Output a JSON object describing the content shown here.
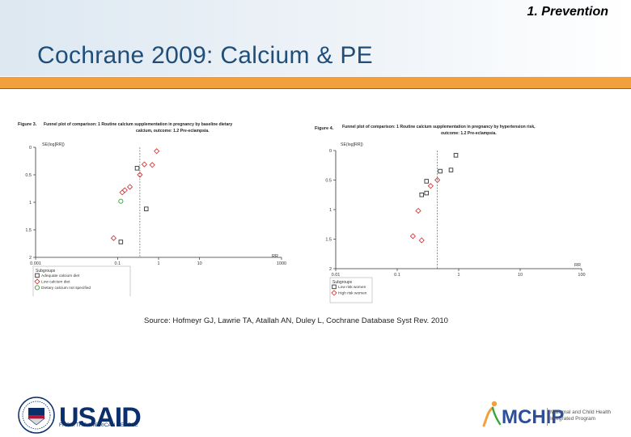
{
  "slide": {
    "section": "1. Prevention",
    "title": "Cochrane 2009: Calcium & PE",
    "source": "Source: Hofmeyr GJ, Lawrie TA, Atallah AN, Duley L, Cochrane Database Syst Rev. 2010"
  },
  "logos": {
    "usaid": "USAID",
    "usaid_tagline": "FROM THE AMERICAN PEOPLE",
    "mchip": "MCHIP",
    "mchip_tagline_1": "Maternal and Child Health",
    "mchip_tagline_2": "Integrated Program"
  },
  "colors": {
    "title": "#1f4e79",
    "band": "#f2a03c",
    "red": "#d23c3c",
    "green": "#3aa33a"
  },
  "chart_data": [
    {
      "type": "scatter",
      "figure_label": "Figure 3.",
      "title_line1": "Funnel plot of comparison: 1 Routine calcium supplementation in pregnancy by baseline dietary",
      "title_line2": "calcium, outcome: 1.2 Pre-eclampsia.",
      "ylabel": "SE(log[RR])",
      "xlabel": "RR",
      "x_scale": "log",
      "xlim": [
        0.001,
        1000
      ],
      "ylim": [
        0,
        2
      ],
      "y_reversed": true,
      "x_ticks": [
        "0.001",
        "0.1",
        "1",
        "10",
        "1000"
      ],
      "y_ticks": [
        "0",
        "0.5",
        "1",
        "1.5",
        "2"
      ],
      "reference_x": 0.35,
      "legend_title": "Subgroups",
      "series": [
        {
          "name": "Adequate calcium diet",
          "marker": "square",
          "color": "#333333",
          "points": [
            [
              0.3,
              0.38
            ],
            [
              0.5,
              1.12
            ],
            [
              0.12,
              1.72
            ]
          ]
        },
        {
          "name": "Low calcium diet",
          "marker": "diamond",
          "color": "#d23c3c",
          "points": [
            [
              0.9,
              0.07
            ],
            [
              0.7,
              0.32
            ],
            [
              0.45,
              0.31
            ],
            [
              0.35,
              0.5
            ],
            [
              0.2,
              0.72
            ],
            [
              0.15,
              0.78
            ],
            [
              0.13,
              0.82
            ],
            [
              0.08,
              1.65
            ]
          ]
        },
        {
          "name": "Dietary calcium not specified",
          "marker": "circle",
          "color": "#3aa33a",
          "points": [
            [
              0.12,
              0.98
            ]
          ]
        }
      ]
    },
    {
      "type": "scatter",
      "figure_label": "Figure 4.",
      "title_line1": "Funnel plot of comparison: 1 Routine calcium supplementation in pregnancy by hypertension risk,",
      "title_line2": "outcome: 1.2 Pre-eclampsia.",
      "ylabel": "SE(log[RR])",
      "xlabel": "RR",
      "x_scale": "log",
      "xlim": [
        0.01,
        100
      ],
      "ylim": [
        0,
        2
      ],
      "y_reversed": true,
      "x_ticks": [
        "0.01",
        "0.1",
        "1",
        "10",
        "100"
      ],
      "y_ticks": [
        "0",
        "0.5",
        "1",
        "1.5",
        "2"
      ],
      "reference_x": 0.45,
      "legend_title": "Subgroups",
      "series": [
        {
          "name": "Low risk women",
          "marker": "square",
          "color": "#333333",
          "points": [
            [
              0.9,
              0.08
            ],
            [
              0.75,
              0.33
            ],
            [
              0.5,
              0.35
            ],
            [
              0.3,
              0.52
            ],
            [
              0.25,
              0.75
            ],
            [
              0.3,
              0.72
            ]
          ]
        },
        {
          "name": "High risk women",
          "marker": "diamond",
          "color": "#d23c3c",
          "points": [
            [
              0.45,
              0.5
            ],
            [
              0.35,
              0.6
            ],
            [
              0.22,
              1.02
            ],
            [
              0.18,
              1.45
            ],
            [
              0.25,
              1.52
            ]
          ]
        }
      ]
    }
  ]
}
